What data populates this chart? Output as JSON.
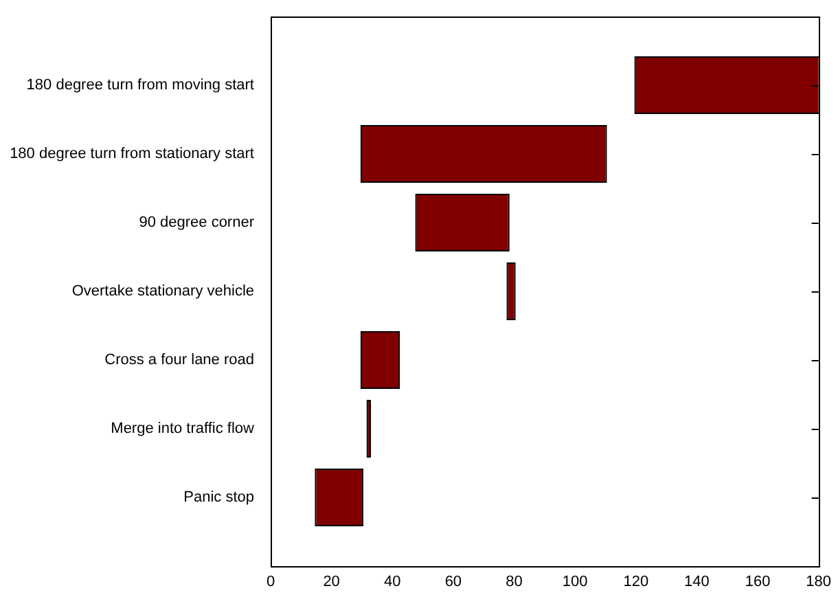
{
  "chart_data": {
    "type": "bar",
    "orientation": "horizontal",
    "categories": [
      "180 degree turn from moving start",
      "180 degree turn from stationary start",
      "90 degree corner",
      "Overtake stationary vehicle",
      "Cross a four lane road",
      "Merge into traffic flow",
      "Panic stop"
    ],
    "base": [
      120,
      30,
      48,
      78,
      30,
      32,
      15
    ],
    "values": [
      60,
      80,
      30,
      2,
      12,
      0.5,
      15
    ],
    "color": "#800000",
    "xlim": [
      0,
      180
    ],
    "xticks": [
      0,
      20,
      40,
      60,
      80,
      100,
      120,
      140,
      160,
      180
    ],
    "grid": false,
    "legend": false
  }
}
